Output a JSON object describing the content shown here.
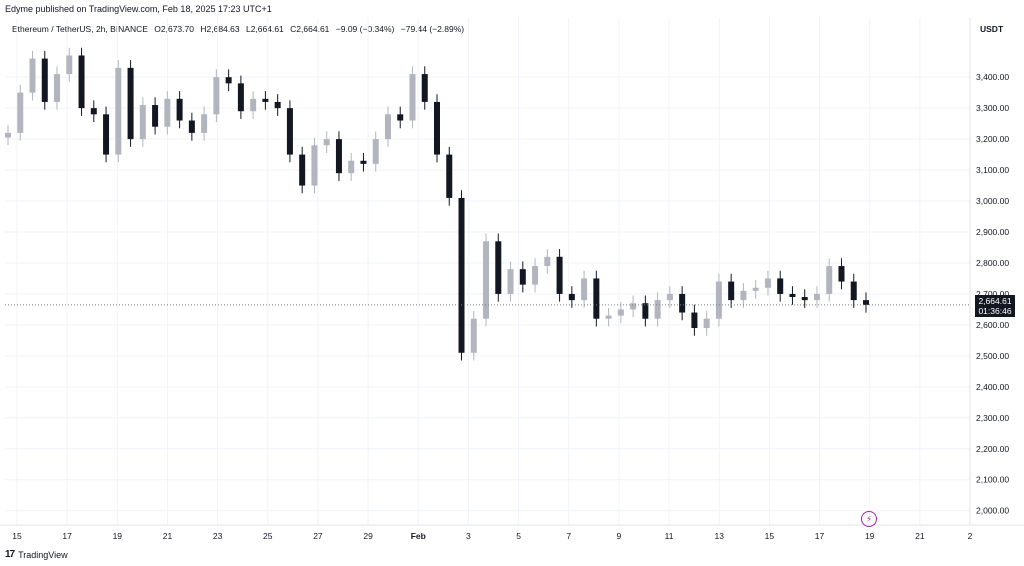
{
  "banner": "Edyme published on TradingView.com, Feb 18, 2025 17:23 UTC+1",
  "legend": {
    "symbol": "Ethereum / TetherUS, 2h, BINANCE",
    "open": "O2,673.70",
    "high": "H2,684.63",
    "low": "L2,664.61",
    "close": "C2,664.61",
    "change": "−9.09 (−0.34%)",
    "change_alt": "−79.44 (−2.89%)"
  },
  "currency": "USDT",
  "price_tag": {
    "price": "2,664.61",
    "countdown": "01:36:46"
  },
  "footer": {
    "logo": "17",
    "brand": "TradingView"
  },
  "icons": {
    "bolt": "bolt-icon"
  },
  "colors": {
    "candle": "#131722",
    "last_line": "#787b86"
  },
  "chart_data": {
    "type": "candlestick",
    "y_axis_ticks": [
      "3,400.00",
      "3,300.00",
      "3,200.00",
      "3,100.00",
      "3,000.00",
      "2,900.00",
      "2,800.00",
      "2,700.00",
      "2,600.00",
      "2,500.00",
      "2,400.00",
      "2,300.00",
      "2,200.00",
      "2,100.00",
      "2,000.00"
    ],
    "x_axis_ticks": [
      "15",
      "17",
      "19",
      "21",
      "23",
      "25",
      "27",
      "29",
      "Feb",
      "3",
      "5",
      "7",
      "9",
      "11",
      "13",
      "15",
      "17",
      "19",
      "21",
      "2"
    ],
    "ylim": [
      1970,
      3520
    ],
    "last_price": 2664.61,
    "series": [
      {
        "x": "Jan 15",
        "close": 3220
      },
      {
        "x": "Jan 16",
        "close": 3350
      },
      {
        "x": "Jan 16.5",
        "close": 3460
      },
      {
        "x": "Jan 17",
        "close": 3320
      },
      {
        "x": "Jan 17.5",
        "close": 3410
      },
      {
        "x": "Jan 18",
        "close": 3470
      },
      {
        "x": "Jan 18.5",
        "close": 3300
      },
      {
        "x": "Jan 19",
        "close": 3280
      },
      {
        "x": "Jan 19.5",
        "close": 3150
      },
      {
        "x": "Jan 20",
        "close": 3430
      },
      {
        "x": "Jan 20.5",
        "close": 3200
      },
      {
        "x": "Jan 21",
        "close": 3310
      },
      {
        "x": "Jan 21.5",
        "close": 3240
      },
      {
        "x": "Jan 22",
        "close": 3330
      },
      {
        "x": "Jan 22.5",
        "close": 3260
      },
      {
        "x": "Jan 23",
        "close": 3220
      },
      {
        "x": "Jan 23.5",
        "close": 3280
      },
      {
        "x": "Jan 24",
        "close": 3400
      },
      {
        "x": "Jan 24.5",
        "close": 3380
      },
      {
        "x": "Jan 25",
        "close": 3290
      },
      {
        "x": "Jan 25.5",
        "close": 3330
      },
      {
        "x": "Jan 26",
        "close": 3320
      },
      {
        "x": "Jan 26.5",
        "close": 3300
      },
      {
        "x": "Jan 27",
        "close": 3150
      },
      {
        "x": "Jan 27.5",
        "close": 3050
      },
      {
        "x": "Jan 28",
        "close": 3180
      },
      {
        "x": "Jan 28.5",
        "close": 3200
      },
      {
        "x": "Jan 29",
        "close": 3090
      },
      {
        "x": "Jan 29.5",
        "close": 3130
      },
      {
        "x": "Jan 30",
        "close": 3120
      },
      {
        "x": "Jan 30.5",
        "close": 3200
      },
      {
        "x": "Jan 31",
        "close": 3280
      },
      {
        "x": "Jan 31.5",
        "close": 3260
      },
      {
        "x": "Feb 1",
        "close": 3410
      },
      {
        "x": "Feb 1.5",
        "close": 3320
      },
      {
        "x": "Feb 2",
        "close": 3150
      },
      {
        "x": "Feb 2.5",
        "close": 3010
      },
      {
        "x": "Feb 3",
        "close": 2510
      },
      {
        "x": "Feb 3.3",
        "close": 2620
      },
      {
        "x": "Feb 3.6",
        "close": 2870
      },
      {
        "x": "Feb 4",
        "close": 2700
      },
      {
        "x": "Feb 4.5",
        "close": 2780
      },
      {
        "x": "Feb 5",
        "close": 2730
      },
      {
        "x": "Feb 5.5",
        "close": 2790
      },
      {
        "x": "Feb 6",
        "close": 2820
      },
      {
        "x": "Feb 6.5",
        "close": 2700
      },
      {
        "x": "Feb 7",
        "close": 2680
      },
      {
        "x": "Feb 7.5",
        "close": 2750
      },
      {
        "x": "Feb 8",
        "close": 2620
      },
      {
        "x": "Feb 8.5",
        "close": 2630
      },
      {
        "x": "Feb 9",
        "close": 2650
      },
      {
        "x": "Feb 9.5",
        "close": 2670
      },
      {
        "x": "Feb 10",
        "close": 2620
      },
      {
        "x": "Feb 10.5",
        "close": 2680
      },
      {
        "x": "Feb 11",
        "close": 2700
      },
      {
        "x": "Feb 11.5",
        "close": 2640
      },
      {
        "x": "Feb 12",
        "close": 2590
      },
      {
        "x": "Feb 12.5",
        "close": 2620
      },
      {
        "x": "Feb 13",
        "close": 2740
      },
      {
        "x": "Feb 13.5",
        "close": 2680
      },
      {
        "x": "Feb 14",
        "close": 2710
      },
      {
        "x": "Feb 14.5",
        "close": 2720
      },
      {
        "x": "Feb 15",
        "close": 2750
      },
      {
        "x": "Feb 15.5",
        "close": 2700
      },
      {
        "x": "Feb 16",
        "close": 2690
      },
      {
        "x": "Feb 16.5",
        "close": 2680
      },
      {
        "x": "Feb 17",
        "close": 2700
      },
      {
        "x": "Feb 17.3",
        "close": 2790
      },
      {
        "x": "Feb 17.6",
        "close": 2740
      },
      {
        "x": "Feb 18",
        "close": 2680
      },
      {
        "x": "Feb 18.3",
        "close": 2664.61
      }
    ]
  }
}
